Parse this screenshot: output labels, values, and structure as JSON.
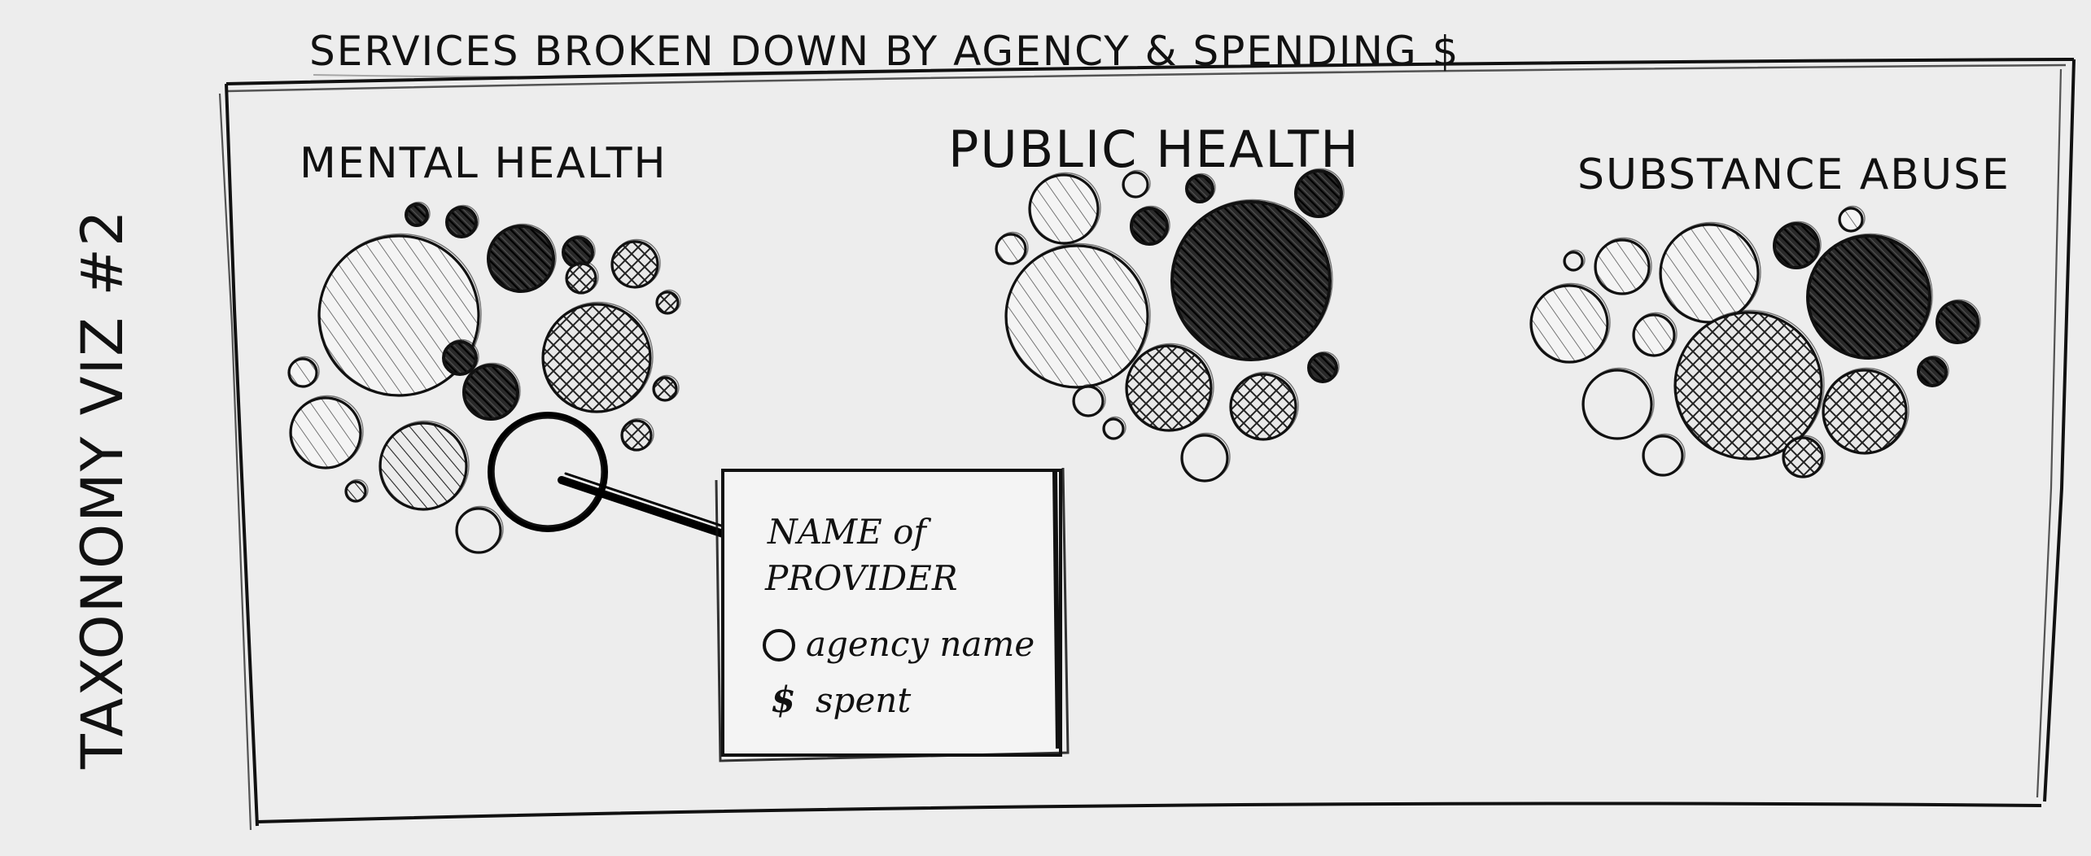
{
  "sheet_title": "SERVICES BROKEN DOWN  BY AGENCY & SPENDING $",
  "side_label": "TAXONOMY VIZ #2",
  "clusters": [
    {
      "label": "MENTAL HEALTH"
    },
    {
      "label": "PUBLIC HEALTH"
    },
    {
      "label": "SUBSTANCE ABUSE"
    }
  ],
  "tooltip": {
    "title_line1": "NAME of",
    "title_line2": "PROVIDER",
    "agency_row": "agency name",
    "spent_row": "spent"
  },
  "icons": {
    "agency_marker": "circle-icon",
    "spent_marker": "dollar-icon"
  },
  "colors": {
    "paper": "#ededed",
    "ink": "#111111"
  }
}
